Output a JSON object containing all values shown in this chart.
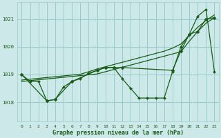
{
  "title": "Graphe pression niveau de la mer (hPa)",
  "bg_color": "#cce8e8",
  "grid_color": "#99cccc",
  "line_color": "#1a5c1a",
  "xlim": [
    -0.5,
    23.5
  ],
  "ylim": [
    1017.3,
    1021.6
  ],
  "yticks": [
    1018,
    1019,
    1020,
    1021
  ],
  "xticks": [
    0,
    1,
    2,
    3,
    4,
    5,
    6,
    7,
    8,
    9,
    10,
    11,
    12,
    13,
    14,
    15,
    16,
    17,
    18,
    19,
    20,
    21,
    22,
    23
  ],
  "series": [
    {
      "x": [
        0,
        1,
        2,
        3,
        4,
        5,
        6,
        7,
        8,
        9,
        10,
        11,
        12,
        13,
        14,
        15,
        16,
        17,
        18,
        19,
        20,
        21,
        22,
        23
      ],
      "y": [
        1019.0,
        1018.75,
        1018.75,
        1018.05,
        1018.1,
        1018.55,
        1018.75,
        1018.85,
        1019.05,
        1019.15,
        1019.25,
        1019.25,
        1018.85,
        1018.5,
        1018.15,
        1018.15,
        1018.15,
        1018.15,
        1019.1,
        1020.0,
        1020.45,
        1021.1,
        1021.35,
        1019.1
      ],
      "marker": true,
      "markersize": 2.0,
      "lw": 0.9
    },
    {
      "x": [
        0,
        1,
        2,
        3,
        4,
        5,
        6,
        7,
        8,
        9,
        10,
        11,
        12,
        13,
        14,
        15,
        16,
        17,
        18,
        19,
        20,
        21,
        22,
        23
      ],
      "y": [
        1018.75,
        1018.78,
        1018.81,
        1018.84,
        1018.87,
        1018.9,
        1018.93,
        1018.96,
        1018.99,
        1019.02,
        1019.1,
        1019.18,
        1019.26,
        1019.34,
        1019.42,
        1019.5,
        1019.58,
        1019.66,
        1019.74,
        1019.82,
        1020.2,
        1020.55,
        1020.85,
        1021.05
      ],
      "marker": false,
      "lw": 0.9
    },
    {
      "x": [
        0,
        1,
        2,
        3,
        4,
        5,
        6,
        7,
        8,
        9,
        10,
        11,
        12,
        13,
        14,
        15,
        16,
        17,
        18,
        19,
        20,
        21,
        22,
        23
      ],
      "y": [
        1018.8,
        1018.83,
        1018.86,
        1018.89,
        1018.92,
        1018.95,
        1018.98,
        1019.01,
        1019.1,
        1019.2,
        1019.28,
        1019.36,
        1019.44,
        1019.52,
        1019.6,
        1019.68,
        1019.76,
        1019.84,
        1019.95,
        1020.1,
        1020.4,
        1020.7,
        1020.95,
        1021.15
      ],
      "marker": false,
      "lw": 0.9
    },
    {
      "x": [
        0,
        3,
        4,
        6,
        9,
        10,
        11,
        12,
        18,
        19,
        20,
        21,
        22,
        23
      ],
      "y": [
        1019.0,
        1018.05,
        1018.1,
        1018.75,
        1019.15,
        1019.25,
        1019.25,
        1019.25,
        1019.15,
        1019.85,
        1020.45,
        1020.55,
        1021.0,
        1021.05
      ],
      "marker": true,
      "markersize": 2.5,
      "lw": 0.9
    }
  ]
}
